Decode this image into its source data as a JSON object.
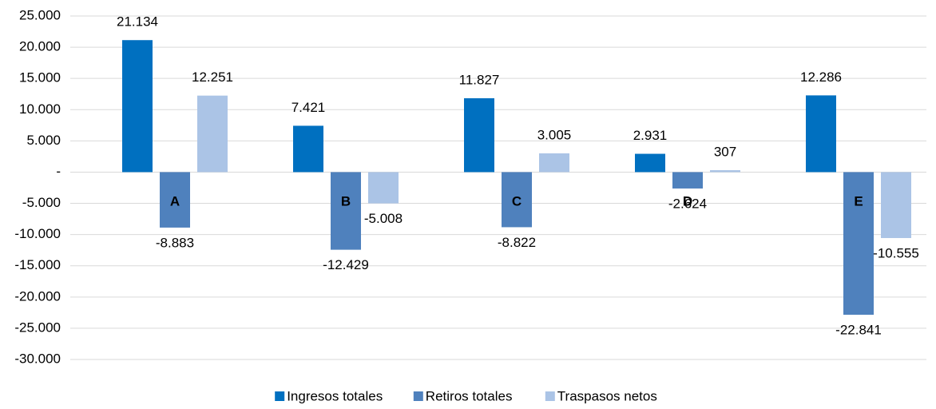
{
  "chart_data": {
    "type": "bar",
    "categories": [
      "A",
      "B",
      "C",
      "D",
      "E"
    ],
    "series": [
      {
        "name": "Ingresos totales",
        "color": "#0070c0",
        "values": [
          21134,
          7421,
          11827,
          2931,
          12286
        ],
        "value_labels": [
          "21.134",
          "7.421",
          "11.827",
          "2.931",
          "12.286"
        ]
      },
      {
        "name": "Retiros totales",
        "color": "#4f81bd",
        "values": [
          -8883,
          -12429,
          -8822,
          -2624,
          -22841
        ],
        "value_labels": [
          "-8.883",
          "-12.429",
          "-8.822",
          "-2.624",
          "-22.841"
        ]
      },
      {
        "name": "Traspasos netos",
        "color": "#abc4e6",
        "values": [
          12251,
          -5008,
          3005,
          307,
          -10555
        ],
        "value_labels": [
          "12.251",
          "-5.008",
          "3.005",
          "307",
          "-10.555"
        ]
      }
    ],
    "ylim": [
      -30000,
      25000
    ],
    "yticks": [
      {
        "value": 25000,
        "label": "25.000"
      },
      {
        "value": 20000,
        "label": "20.000"
      },
      {
        "value": 15000,
        "label": "15.000"
      },
      {
        "value": 10000,
        "label": "10.000"
      },
      {
        "value": 5000,
        "label": "5.000"
      },
      {
        "value": 0,
        "label": "-"
      },
      {
        "value": -5000,
        "label": "-5.000"
      },
      {
        "value": -10000,
        "label": "-10.000"
      },
      {
        "value": -15000,
        "label": "-15.000"
      },
      {
        "value": -20000,
        "label": "-20.000"
      },
      {
        "value": -25000,
        "label": "-25.000"
      },
      {
        "value": -30000,
        "label": "-30.000"
      }
    ],
    "grid": true,
    "legend": "bottom"
  }
}
